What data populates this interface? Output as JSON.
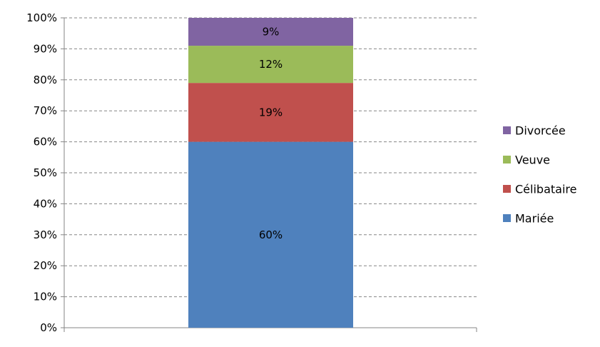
{
  "chart_data": {
    "type": "bar",
    "stacked": true,
    "percent_stacked": true,
    "categories": [
      ""
    ],
    "series": [
      {
        "name": "Mariée",
        "values": [
          60
        ],
        "label": "60%",
        "color": "#4F81BD"
      },
      {
        "name": "Célibataire",
        "values": [
          19
        ],
        "label": "19%",
        "color": "#C0504D"
      },
      {
        "name": "Veuve",
        "values": [
          12
        ],
        "label": "12%",
        "color": "#9BBB59"
      },
      {
        "name": "Divorcée",
        "values": [
          9
        ],
        "label": "9%",
        "color": "#8064A2"
      }
    ],
    "y_ticks": [
      "0%",
      "10%",
      "20%",
      "30%",
      "40%",
      "50%",
      "60%",
      "70%",
      "80%",
      "90%",
      "100%"
    ],
    "ylim": [
      0,
      100
    ],
    "grid": "horizontal-dashed",
    "legend_position": "right",
    "legend_order": [
      "Divorcée",
      "Veuve",
      "Célibataire",
      "Mariée"
    ],
    "title": "",
    "xlabel": "",
    "ylabel": ""
  }
}
